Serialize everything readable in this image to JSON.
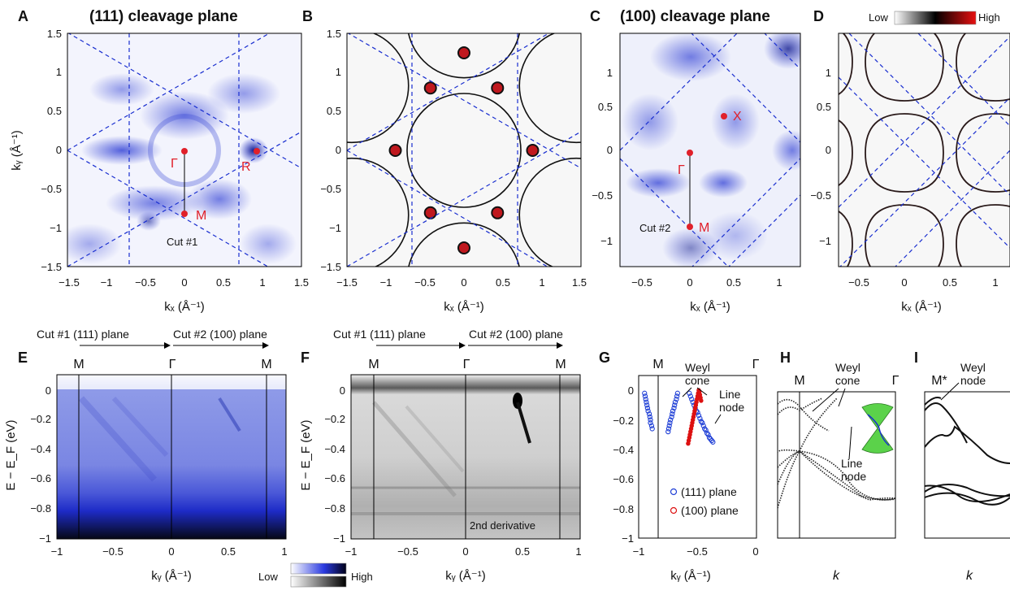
{
  "panels": {
    "A": {
      "letter": "A",
      "title": "(111) cleavage plane",
      "xlabel": "kₓ (Å⁻¹)",
      "ylabel": "kᵧ (Å⁻¹)",
      "xticks": [
        "−1.5",
        "−1",
        "−0.5",
        "0",
        "0.5",
        "1",
        "1.5"
      ],
      "yticks": [
        "1.5",
        "1",
        "0.5",
        "0",
        "−0.5",
        "−1",
        "−1.5"
      ],
      "points": {
        "gamma": "Γ",
        "m": "M",
        "r": "R"
      },
      "cut": "Cut #1"
    },
    "B": {
      "letter": "B",
      "xlabel": "kₓ (Å⁻¹)",
      "xticks": [
        "−1.5",
        "−1",
        "−0.5",
        "0",
        "0.5",
        "1",
        "1.5"
      ],
      "yticks": [
        "1.5",
        "1",
        "0.5",
        "0",
        "−0.5",
        "−1",
        "−1.5"
      ]
    },
    "C": {
      "letter": "C",
      "title": "(100) cleavage plane",
      "xlabel": "kₓ (Å⁻¹)",
      "xticks": [
        "−0.5",
        "0",
        "0.5",
        "1"
      ],
      "yticks": [
        "1",
        "0.5",
        "0",
        "−0.5",
        "−1"
      ],
      "points": {
        "gamma": "Γ",
        "m": "M",
        "x": "X"
      },
      "cut": "Cut #2"
    },
    "D": {
      "letter": "D",
      "xlabel": "kₓ (Å⁻¹)",
      "xticks": [
        "−0.5",
        "0",
        "0.5",
        "1"
      ],
      "yticks": [
        "1",
        "0.5",
        "0",
        "−0.5",
        "−1"
      ],
      "colorbar_low": "Low",
      "colorbar_high": "High"
    },
    "E": {
      "letter": "E",
      "xlabel": "kᵧ (Å⁻¹)",
      "ylabel": "E − E_F (eV)",
      "xticks": [
        "−1",
        "−0.5",
        "0",
        "0.5",
        "1"
      ],
      "yticks": [
        "0",
        "−0.2",
        "−0.4",
        "−0.6",
        "−0.8",
        "−1"
      ],
      "cut1": "Cut #1 (111) plane",
      "cut2": "Cut #2 (100) plane",
      "hs": [
        "M",
        "Γ",
        "M"
      ],
      "colorbar_low": "Low",
      "colorbar_high": "High"
    },
    "F": {
      "letter": "F",
      "xlabel": "kᵧ (Å⁻¹)",
      "ylabel": "E − E_F (eV)",
      "xticks": [
        "−1",
        "−0.5",
        "0",
        "0.5",
        "1"
      ],
      "yticks": [
        "0",
        "−0.2",
        "−0.4",
        "−0.6",
        "−0.8",
        "−1"
      ],
      "cut1": "Cut #1 (111) plane",
      "cut2": "Cut #2 (100) plane",
      "hs": [
        "M",
        "Γ",
        "M"
      ],
      "note": "2nd derivative"
    },
    "G": {
      "letter": "G",
      "xlabel": "kᵧ (Å⁻¹)",
      "xticks": [
        "−1",
        "−0.5",
        "0"
      ],
      "yticks": [
        "0",
        "−0.2",
        "−0.4",
        "−0.6",
        "−0.8",
        "−1"
      ],
      "hs": [
        "M",
        "Γ"
      ],
      "ann_cone1": "Weyl",
      "ann_cone2": "cone",
      "ann_line1": "Line",
      "ann_line2": "node",
      "legend": [
        "(111) plane",
        "(100) plane"
      ]
    },
    "H": {
      "letter": "H",
      "xlabel": "k",
      "hs": [
        "M",
        "Γ"
      ],
      "ann_cone1": "Weyl",
      "ann_cone2": "cone",
      "ann_line1": "Line",
      "ann_line2": "node"
    },
    "I": {
      "letter": "I",
      "xlabel": "k",
      "hs": [
        "M*"
      ],
      "ann1": "Weyl",
      "ann2": "node"
    }
  },
  "colors": {
    "arpes_blue": "#2233cc",
    "bz_dashed": "#1a2fd0",
    "marker_red": "#e0202a",
    "series_111": "#1f3fd6",
    "series_100": "#dd1111"
  },
  "chart_data": [
    {
      "type": "heatmap",
      "panel": "A",
      "title": "(111) cleavage plane",
      "xlim": [
        -1.5,
        1.5
      ],
      "ylim": [
        -1.5,
        1.5
      ],
      "points": [
        {
          "label": "Γ",
          "x": 0,
          "y": 0
        },
        {
          "label": "M",
          "x": 0,
          "y": -0.8
        },
        {
          "label": "R",
          "x": 0.93,
          "y": 0
        }
      ]
    },
    {
      "type": "heatmap",
      "panel": "C",
      "title": "(100) cleavage plane",
      "xlim": [
        -0.7,
        1.2
      ],
      "ylim": [
        -1.3,
        1.3
      ],
      "points": [
        {
          "label": "Γ",
          "x": 0,
          "y": 0
        },
        {
          "label": "M",
          "x": 0,
          "y": -0.82
        },
        {
          "label": "X",
          "x": 0.4,
          "y": 0.42
        }
      ]
    },
    {
      "type": "scatter",
      "panel": "G",
      "xlim": [
        -1,
        0
      ],
      "ylim": [
        -1,
        0.1
      ],
      "series": [
        {
          "name": "(111) plane",
          "x": [
            -0.95,
            -0.945,
            -0.94,
            -0.935,
            -0.93,
            -0.925,
            -0.92,
            -0.91,
            -0.905,
            -0.9,
            -0.9,
            -0.89,
            -0.885,
            -0.75,
            -0.745,
            -0.74,
            -0.735,
            -0.73,
            -0.72,
            -0.715,
            -0.71,
            -0.7,
            -0.695,
            -0.69,
            -0.68,
            -0.675,
            -0.67,
            -0.57,
            -0.56,
            -0.55,
            -0.54,
            -0.53,
            -0.52,
            -0.51,
            -0.5,
            -0.49,
            -0.48,
            -0.47,
            -0.46,
            -0.45,
            -0.44,
            -0.43,
            -0.42,
            -0.41,
            -0.4,
            -0.39,
            -0.38,
            -0.37
          ],
          "y": [
            -0.02,
            -0.04,
            -0.06,
            -0.08,
            -0.1,
            -0.12,
            -0.14,
            -0.16,
            -0.18,
            -0.2,
            -0.22,
            -0.24,
            -0.26,
            -0.28,
            -0.26,
            -0.24,
            -0.22,
            -0.2,
            -0.18,
            -0.16,
            -0.14,
            -0.12,
            -0.1,
            -0.08,
            -0.06,
            -0.04,
            -0.02,
            -0.02,
            -0.04,
            -0.06,
            -0.08,
            -0.1,
            -0.12,
            -0.14,
            -0.15,
            -0.17,
            -0.19,
            -0.21,
            -0.22,
            -0.24,
            -0.26,
            -0.27,
            -0.29,
            -0.3,
            -0.32,
            -0.33,
            -0.34,
            -0.35
          ]
        },
        {
          "name": "(100) plane",
          "x": [
            -0.58,
            -0.575,
            -0.57,
            -0.565,
            -0.56,
            -0.555,
            -0.55,
            -0.545,
            -0.54,
            -0.535,
            -0.53,
            -0.525,
            -0.52,
            -0.515,
            -0.51,
            -0.505,
            -0.5,
            -0.495,
            -0.49,
            -0.485,
            -0.48,
            -0.475,
            -0.47
          ],
          "y": [
            -0.36,
            -0.34,
            -0.32,
            -0.3,
            -0.28,
            -0.26,
            -0.24,
            -0.22,
            -0.2,
            -0.18,
            -0.16,
            -0.14,
            -0.12,
            -0.1,
            -0.08,
            -0.06,
            -0.04,
            -0.02,
            0.0,
            -0.01,
            -0.03,
            -0.05,
            -0.07
          ]
        }
      ]
    }
  ]
}
